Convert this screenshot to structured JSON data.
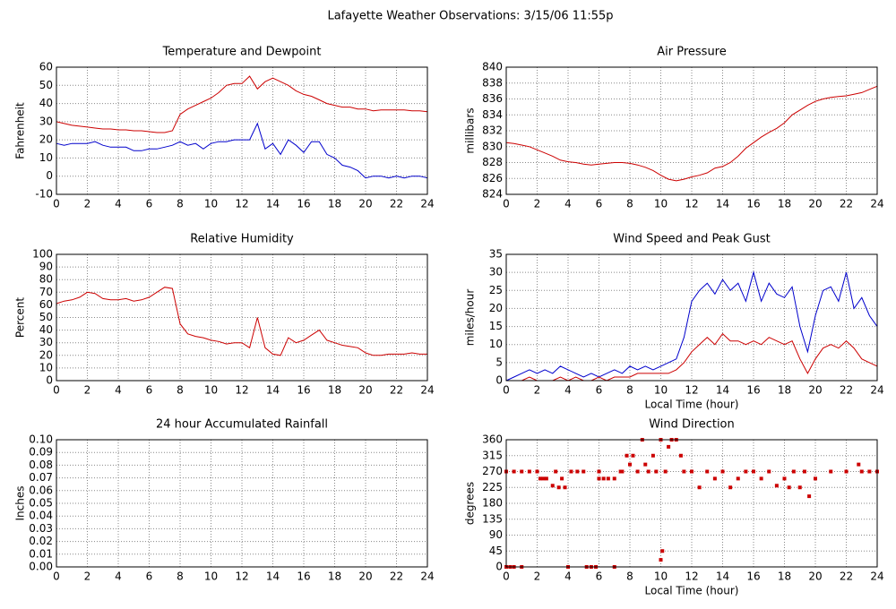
{
  "title": "Lafayette Weather Observations: 3/15/06 11:55p",
  "chart_data": [
    {
      "type": "line",
      "title": "Temperature and Dewpoint",
      "ylabel": "Fahrenheit",
      "x": [
        0,
        0.5,
        1,
        1.5,
        2,
        2.5,
        3,
        3.5,
        4,
        4.5,
        5,
        5.5,
        6,
        6.5,
        7,
        7.5,
        8,
        8.5,
        9,
        9.5,
        10,
        10.5,
        11,
        11.5,
        12,
        12.5,
        13,
        13.5,
        14,
        14.5,
        15,
        15.5,
        16,
        16.5,
        17,
        17.5,
        18,
        18.5,
        19,
        19.5,
        20,
        20.5,
        21,
        21.5,
        22,
        22.5,
        23,
        23.5,
        24
      ],
      "series": [
        {
          "color": "#cc0000",
          "values": [
            30,
            29,
            28,
            27.5,
            27,
            26.5,
            26,
            26,
            25.5,
            25.5,
            25,
            25,
            24.5,
            24,
            24,
            25,
            34,
            37,
            39,
            41,
            43,
            46,
            50,
            51,
            51,
            55,
            48,
            52,
            54,
            52,
            50,
            47,
            45,
            44,
            42,
            40,
            39,
            38,
            38,
            37,
            37,
            36,
            36.5,
            36.5,
            36.5,
            36.5,
            36,
            36,
            35.5
          ]
        },
        {
          "color": "#0000cc",
          "values": [
            18,
            17,
            18,
            18,
            18,
            19,
            17,
            16,
            16,
            16,
            14,
            14,
            15,
            15,
            16,
            17,
            19,
            17,
            18,
            15,
            18,
            19,
            19,
            20,
            20,
            20,
            29,
            15,
            18,
            12,
            20,
            17,
            13,
            19,
            19,
            12,
            10,
            6,
            5,
            3,
            -1,
            0,
            0,
            -1,
            0,
            -1,
            0,
            0,
            -1
          ]
        }
      ],
      "xlim": [
        0,
        24
      ],
      "xticks": [
        0,
        2,
        4,
        6,
        8,
        10,
        12,
        14,
        16,
        18,
        20,
        22,
        24
      ],
      "ylim": [
        -10,
        60
      ],
      "yticks": [
        -10,
        0,
        10,
        20,
        30,
        40,
        50,
        60
      ],
      "grid": true
    },
    {
      "type": "line",
      "title": "Air Pressure",
      "ylabel": "millibars",
      "x": [
        0,
        0.5,
        1,
        1.5,
        2,
        2.5,
        3,
        3.5,
        4,
        4.5,
        5,
        5.5,
        6,
        6.5,
        7,
        7.5,
        8,
        8.5,
        9,
        9.5,
        10,
        10.5,
        11,
        11.5,
        12,
        12.5,
        13,
        13.5,
        14,
        14.5,
        15,
        15.5,
        16,
        16.5,
        17,
        17.5,
        18,
        18.5,
        19,
        19.5,
        20,
        20.5,
        21,
        21.5,
        22,
        22.5,
        23,
        23.5,
        24
      ],
      "series": [
        {
          "color": "#cc0000",
          "values": [
            830.5,
            830.4,
            830.2,
            830,
            829.6,
            829.2,
            828.8,
            828.3,
            828.1,
            828,
            827.8,
            827.7,
            827.8,
            827.9,
            828,
            828,
            827.9,
            827.7,
            827.4,
            827,
            826.4,
            825.9,
            825.7,
            825.9,
            826.2,
            826.4,
            826.7,
            827.3,
            827.5,
            828,
            828.8,
            829.8,
            830.5,
            831.2,
            831.8,
            832.3,
            833,
            834,
            834.6,
            835.2,
            835.7,
            836,
            836.2,
            836.3,
            836.4,
            836.6,
            836.8,
            837.2,
            837.6
          ]
        }
      ],
      "xlim": [
        0,
        24
      ],
      "xticks": [
        0,
        2,
        4,
        6,
        8,
        10,
        12,
        14,
        16,
        18,
        20,
        22,
        24
      ],
      "ylim": [
        824,
        840
      ],
      "yticks": [
        824,
        826,
        828,
        830,
        832,
        834,
        836,
        838,
        840
      ],
      "grid": true
    },
    {
      "type": "line",
      "title": "Relative Humidity",
      "ylabel": "Percent",
      "x": [
        0,
        0.5,
        1,
        1.5,
        2,
        2.5,
        3,
        3.5,
        4,
        4.5,
        5,
        5.5,
        6,
        6.5,
        7,
        7.5,
        8,
        8.5,
        9,
        9.5,
        10,
        10.5,
        11,
        11.5,
        12,
        12.5,
        13,
        13.5,
        14,
        14.5,
        15,
        15.5,
        16,
        16.5,
        17,
        17.5,
        18,
        18.5,
        19,
        19.5,
        20,
        20.5,
        21,
        21.5,
        22,
        22.5,
        23,
        23.5,
        24
      ],
      "series": [
        {
          "color": "#cc0000",
          "values": [
            61,
            63,
            64,
            66,
            70,
            69,
            65,
            64,
            64,
            65,
            63,
            64,
            66,
            70,
            74,
            73,
            45,
            37,
            35,
            34,
            32,
            31,
            29,
            30,
            30,
            26,
            50,
            26,
            21,
            20,
            34,
            30,
            32,
            36,
            40,
            32,
            30,
            28,
            27,
            26,
            22,
            20,
            20,
            21,
            21,
            21,
            22,
            21,
            21
          ]
        }
      ],
      "xlim": [
        0,
        24
      ],
      "xticks": [
        0,
        2,
        4,
        6,
        8,
        10,
        12,
        14,
        16,
        18,
        20,
        22,
        24
      ],
      "ylim": [
        0,
        100
      ],
      "yticks": [
        0,
        10,
        20,
        30,
        40,
        50,
        60,
        70,
        80,
        90,
        100
      ],
      "grid": true
    },
    {
      "type": "line",
      "title": "Wind Speed and Peak Gust",
      "ylabel": "miles/hour",
      "xlabel": "Local Time (hour)",
      "x": [
        0,
        0.5,
        1,
        1.5,
        2,
        2.5,
        3,
        3.5,
        4,
        4.5,
        5,
        5.5,
        6,
        6.5,
        7,
        7.5,
        8,
        8.5,
        9,
        9.5,
        10,
        10.5,
        11,
        11.5,
        12,
        12.5,
        13,
        13.5,
        14,
        14.5,
        15,
        15.5,
        16,
        16.5,
        17,
        17.5,
        18,
        18.5,
        19,
        19.5,
        20,
        20.5,
        21,
        21.5,
        22,
        22.5,
        23,
        23.5,
        24
      ],
      "series": [
        {
          "color": "#0000cc",
          "values": [
            0,
            1,
            2,
            3,
            2,
            3,
            2,
            4,
            3,
            2,
            1,
            2,
            1,
            2,
            3,
            2,
            4,
            3,
            4,
            3,
            4,
            5,
            6,
            12,
            22,
            25,
            27,
            24,
            28,
            25,
            27,
            22,
            30,
            22,
            27,
            24,
            23,
            26,
            15,
            8,
            18,
            25,
            26,
            22,
            30,
            20,
            23,
            18,
            15
          ]
        },
        {
          "color": "#cc0000",
          "values": [
            0,
            0,
            0,
            1,
            0,
            0,
            0,
            1,
            0,
            1,
            0,
            0,
            1,
            0,
            1,
            1,
            1,
            2,
            2,
            2,
            2,
            2,
            3,
            5,
            8,
            10,
            12,
            10,
            13,
            11,
            11,
            10,
            11,
            10,
            12,
            11,
            10,
            11,
            6,
            2,
            6,
            9,
            10,
            9,
            11,
            9,
            6,
            5,
            4
          ]
        }
      ],
      "xlim": [
        0,
        24
      ],
      "xticks": [
        0,
        2,
        4,
        6,
        8,
        10,
        12,
        14,
        16,
        18,
        20,
        22,
        24
      ],
      "ylim": [
        0,
        35
      ],
      "yticks": [
        0,
        5,
        10,
        15,
        20,
        25,
        30,
        35
      ],
      "grid": true
    },
    {
      "type": "line",
      "title": "24 hour Accumulated Rainfall",
      "ylabel": "Inches",
      "x": [
        0,
        24
      ],
      "series": [
        {
          "color": "#cc0000",
          "values": [
            0,
            0
          ]
        }
      ],
      "xlim": [
        0,
        24
      ],
      "xticks": [
        0,
        2,
        4,
        6,
        8,
        10,
        12,
        14,
        16,
        18,
        20,
        22,
        24
      ],
      "ylim": [
        0,
        0.1
      ],
      "yticks": [
        {
          "value": 0,
          "label": "0.00"
        },
        {
          "value": 0.01,
          "label": "0.01"
        },
        {
          "value": 0.02,
          "label": "0.02"
        },
        {
          "value": 0.03,
          "label": "0.03"
        },
        {
          "value": 0.04,
          "label": "0.04"
        },
        {
          "value": 0.05,
          "label": "0.05"
        },
        {
          "value": 0.06,
          "label": "0.06"
        },
        {
          "value": 0.07,
          "label": "0.07"
        },
        {
          "value": 0.08,
          "label": "0.08"
        },
        {
          "value": 0.09,
          "label": "0.09"
        },
        {
          "value": 0.1,
          "label": "0.10"
        }
      ],
      "grid": true
    },
    {
      "type": "scatter",
      "title": "Wind Direction",
      "ylabel": "degrees",
      "xlabel": "Local Time (hour)",
      "x": [
        0,
        0.25,
        0.5,
        1,
        0,
        0.5,
        1,
        1.5,
        2,
        2.2,
        2.4,
        2.6,
        3,
        3.2,
        3.4,
        3.6,
        3.8,
        4,
        4.2,
        4.6,
        5,
        5.2,
        5.5,
        5.8,
        6,
        6,
        6.3,
        6.6,
        7,
        7,
        7.4,
        7.5,
        7.8,
        8,
        8.2,
        8.5,
        8.8,
        9,
        9.2,
        9.5,
        9.7,
        10,
        10,
        10.1,
        10.3,
        10.5,
        10.7,
        11,
        11.3,
        11.5,
        12,
        12.5,
        13,
        13.5,
        14,
        14.5,
        15,
        15.5,
        16,
        16.5,
        17,
        17.5,
        18,
        18.3,
        18.6,
        19,
        19.3,
        19.6,
        20,
        21,
        22,
        22.8,
        23,
        23.5,
        24
      ],
      "series": [
        {
          "color": "#cc0000",
          "values": [
            0,
            0,
            0,
            0,
            270,
            270,
            270,
            270,
            270,
            250,
            250,
            250,
            230,
            270,
            225,
            250,
            225,
            0,
            270,
            270,
            270,
            0,
            0,
            0,
            270,
            250,
            250,
            250,
            0,
            250,
            270,
            270,
            315,
            290,
            315,
            270,
            360,
            290,
            270,
            315,
            270,
            360,
            20,
            45,
            270,
            340,
            360,
            360,
            315,
            270,
            270,
            225,
            270,
            250,
            270,
            225,
            250,
            270,
            270,
            250,
            270,
            230,
            250,
            225,
            270,
            225,
            270,
            200,
            250,
            270,
            270,
            290,
            270,
            270,
            270
          ]
        }
      ],
      "xlim": [
        0,
        24
      ],
      "xticks": [
        0,
        2,
        4,
        6,
        8,
        10,
        12,
        14,
        16,
        18,
        20,
        22,
        24
      ],
      "ylim": [
        0,
        360
      ],
      "yticks": [
        0,
        45,
        90,
        135,
        180,
        225,
        270,
        315,
        360
      ],
      "grid": true
    }
  ]
}
